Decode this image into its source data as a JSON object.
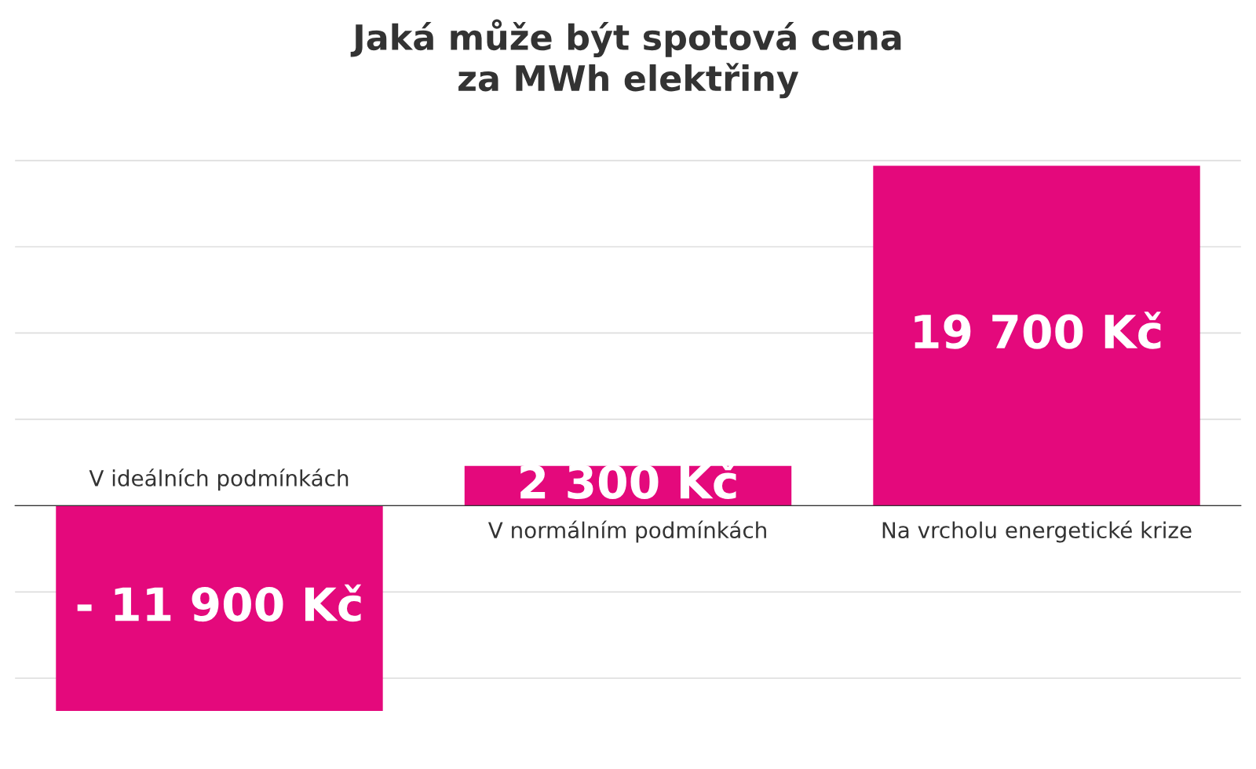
{
  "chart_data": {
    "type": "bar",
    "title": "Jaká může být spotová cena\nza MWh elektřiny",
    "categories": [
      "V ideálních podmínkách",
      "V normálním podmínkách",
      "Na vrcholu energetické krize"
    ],
    "values": [
      -11900,
      2300,
      19700
    ],
    "value_labels": [
      "- 11 900 Kč",
      "2 300 Kč",
      "19 700 Kč"
    ],
    "color": "#e4097c",
    "yticks": [
      {
        "value": -10000,
        "label": null
      },
      {
        "value": -5000,
        "label": null
      },
      {
        "value": 0,
        "label": null
      },
      {
        "value": 5000,
        "label": null
      },
      {
        "value": 10000,
        "label": null
      },
      {
        "value": 15000,
        "label": null
      },
      {
        "value": 20000,
        "label": null
      }
    ],
    "grid": "y",
    "tick_labels": "x"
  }
}
